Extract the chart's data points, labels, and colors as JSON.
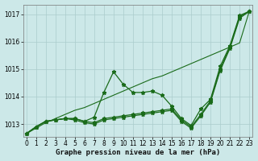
{
  "title": "Graphe pression niveau de la mer (hPa)",
  "background_color": "#cce8e8",
  "grid_color": "#aacccc",
  "line_color": "#1a6b1a",
  "xlim": [
    -0.3,
    23.3
  ],
  "ylim": [
    1012.55,
    1017.35
  ],
  "yticks": [
    1013,
    1014,
    1015,
    1016,
    1017
  ],
  "xticks": [
    0,
    1,
    2,
    3,
    4,
    5,
    6,
    7,
    8,
    9,
    10,
    11,
    12,
    13,
    14,
    15,
    16,
    17,
    18,
    19,
    20,
    21,
    22,
    23
  ],
  "line_straight": [
    1012.65,
    1012.85,
    1013.05,
    1013.2,
    1013.35,
    1013.5,
    1013.6,
    1013.75,
    1013.9,
    1014.05,
    1014.2,
    1014.35,
    1014.5,
    1014.65,
    1014.75,
    1014.9,
    1015.05,
    1015.2,
    1015.35,
    1015.5,
    1015.65,
    1015.8,
    1015.95,
    1017.1
  ],
  "line_a": [
    1012.65,
    1012.9,
    1013.1,
    1013.15,
    1013.2,
    1013.2,
    1013.1,
    1013.25,
    1014.15,
    1014.9,
    1014.45,
    1014.15,
    1014.15,
    1014.2,
    1014.05,
    1013.65,
    1013.2,
    1012.95,
    1013.55,
    1013.9,
    1015.1,
    1015.85,
    1016.95,
    1017.1
  ],
  "line_b": [
    1012.65,
    1012.9,
    1013.1,
    1013.15,
    1013.2,
    1013.2,
    1013.1,
    1013.05,
    1013.2,
    1013.25,
    1013.3,
    1013.35,
    1013.4,
    1013.45,
    1013.5,
    1013.55,
    1013.15,
    1012.9,
    1013.35,
    1013.85,
    1015.0,
    1015.8,
    1016.9,
    1017.1
  ],
  "line_c": [
    1012.65,
    1012.9,
    1013.1,
    1013.15,
    1013.2,
    1013.15,
    1013.05,
    1013.0,
    1013.15,
    1013.2,
    1013.25,
    1013.3,
    1013.35,
    1013.4,
    1013.45,
    1013.5,
    1013.1,
    1012.85,
    1013.3,
    1013.8,
    1014.95,
    1015.75,
    1016.85,
    1017.1
  ],
  "marker": "*",
  "markersize": 3.5,
  "linewidth": 0.9,
  "straight_linewidth": 0.8,
  "title_fontsize": 6.5,
  "tick_fontsize": 5.5
}
